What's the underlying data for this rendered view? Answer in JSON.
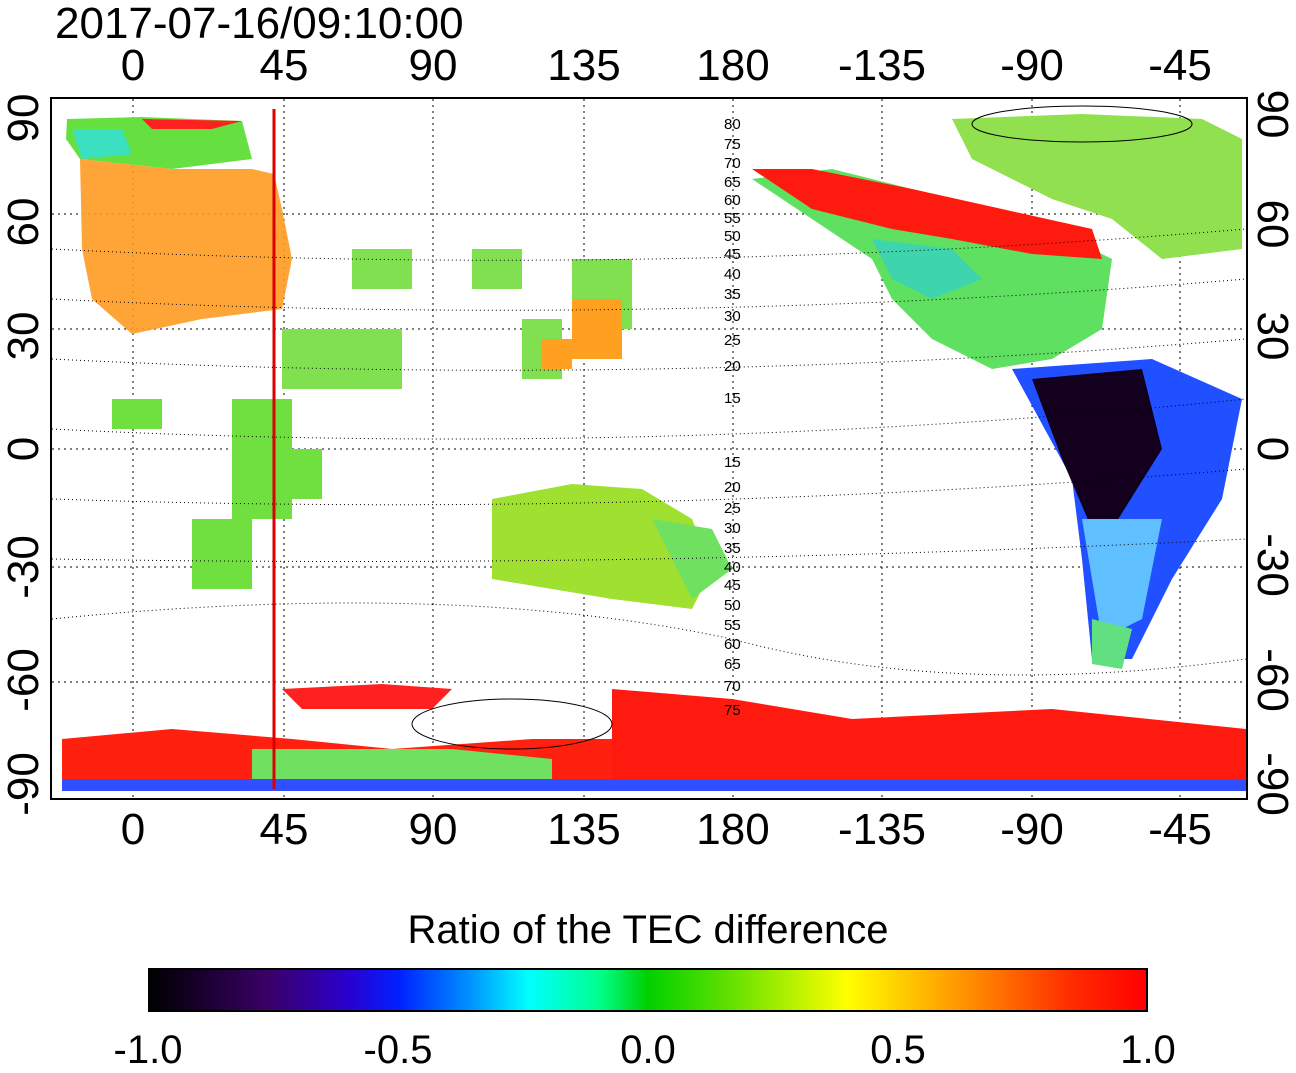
{
  "title": "2017-07-16/09:10:00",
  "lon_ticks": [
    "0",
    "45",
    "90",
    "135",
    "180",
    "-135",
    "-90",
    "-45"
  ],
  "lat_ticks": [
    "90",
    "60",
    "30",
    "0",
    "-30",
    "-60",
    "-90"
  ],
  "contour_labels_north": [
    "80",
    "75",
    "70",
    "65",
    "60",
    "55",
    "50",
    "45",
    "40",
    "35",
    "30",
    "25",
    "20",
    "15"
  ],
  "contour_labels_south": [
    "15",
    "20",
    "25",
    "30",
    "35",
    "40",
    "45",
    "50",
    "55",
    "60",
    "65",
    "70",
    "75"
  ],
  "colorbar": {
    "title": "Ratio of the TEC difference",
    "ticks": [
      "-1.0",
      "-0.5",
      "0.0",
      "0.5",
      "1.0"
    ]
  },
  "colors": {
    "positive": "#ff0000",
    "neutral": "#00e000",
    "negative": "#000000",
    "terminator": "#dd0000"
  }
}
